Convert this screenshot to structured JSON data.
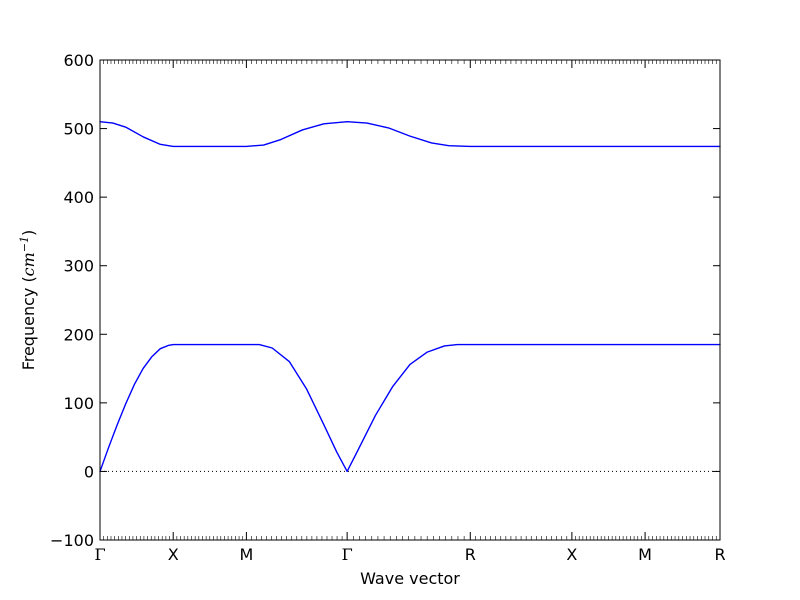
{
  "chart_data": {
    "type": "line",
    "title": "",
    "xlabel": "Wave vector",
    "ylabel_prefix": "Frequency (",
    "ylabel_unit": "cm",
    "ylabel_exp": "−1",
    "ylabel_suffix": ")",
    "ylim": [
      -100,
      600
    ],
    "yticks": [
      -100,
      0,
      100,
      200,
      300,
      400,
      500,
      600
    ],
    "ytick_labels": [
      "−100",
      "0",
      "100",
      "200",
      "300",
      "400",
      "500",
      "600"
    ],
    "xlim": [
      0,
      7.2
    ],
    "high_symmetry_points": [
      {
        "label": "Γ",
        "x": 0
      },
      {
        "label": "X",
        "x": 0.85
      },
      {
        "label": "M",
        "x": 1.7
      },
      {
        "label": "Γ",
        "x": 2.87
      },
      {
        "label": "R",
        "x": 4.3
      },
      {
        "label": "X",
        "x": 5.48
      },
      {
        "label": "M",
        "x": 6.33
      },
      {
        "label": "R",
        "x": 7.2
      }
    ],
    "zero_line": {
      "y": 0,
      "style": "dotted"
    },
    "series": [
      {
        "color": "#0000ff",
        "points": [
          [
            0,
            0
          ],
          [
            0.1,
            35
          ],
          [
            0.2,
            68
          ],
          [
            0.3,
            99
          ],
          [
            0.4,
            127
          ],
          [
            0.5,
            150
          ],
          [
            0.6,
            167
          ],
          [
            0.7,
            179
          ],
          [
            0.8,
            184
          ],
          [
            0.85,
            185
          ],
          [
            1.7,
            185
          ],
          [
            1.85,
            185
          ],
          [
            2.0,
            180
          ],
          [
            2.2,
            160
          ],
          [
            2.4,
            120
          ],
          [
            2.6,
            68
          ],
          [
            2.75,
            28
          ],
          [
            2.87,
            0
          ],
          [
            3.0,
            32
          ],
          [
            3.2,
            82
          ],
          [
            3.4,
            124
          ],
          [
            3.6,
            156
          ],
          [
            3.8,
            174
          ],
          [
            4.0,
            183
          ],
          [
            4.15,
            185
          ],
          [
            4.3,
            185
          ],
          [
            5.48,
            185
          ],
          [
            6.33,
            185
          ],
          [
            7.2,
            185
          ]
        ]
      },
      {
        "color": "#0000ff",
        "points": [
          [
            0,
            510
          ],
          [
            0.15,
            508
          ],
          [
            0.3,
            502
          ],
          [
            0.5,
            488
          ],
          [
            0.7,
            477
          ],
          [
            0.85,
            474
          ],
          [
            1.7,
            474
          ],
          [
            1.9,
            476
          ],
          [
            2.1,
            484
          ],
          [
            2.35,
            498
          ],
          [
            2.6,
            507
          ],
          [
            2.87,
            510
          ],
          [
            3.1,
            508
          ],
          [
            3.35,
            501
          ],
          [
            3.6,
            489
          ],
          [
            3.85,
            479
          ],
          [
            4.05,
            475
          ],
          [
            4.3,
            474
          ],
          [
            5.48,
            474
          ],
          [
            6.33,
            474
          ],
          [
            7.2,
            474
          ]
        ]
      }
    ]
  }
}
